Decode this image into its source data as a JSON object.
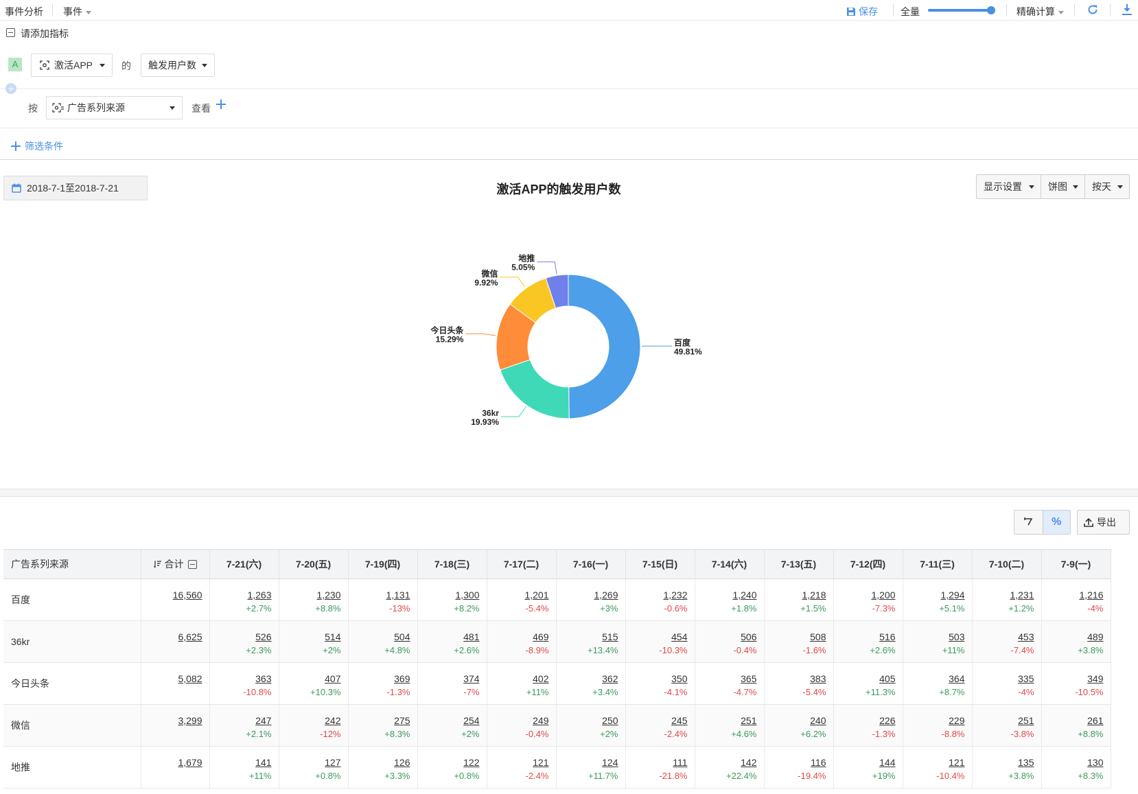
{
  "topbar": {
    "module": "事件分析",
    "type_label": "事件",
    "save_label": "保存",
    "sample_label": "全量",
    "sample_fraction": 0.96,
    "calc_label": "精确计算"
  },
  "metrics": {
    "section_title": "请添加指标",
    "badge": "A",
    "event": "激活APP",
    "of": "的",
    "measure": "触发用户数",
    "group_prefix": "按",
    "group_by": "广告系列来源",
    "view_label": "查看",
    "filter_label": "筛选条件"
  },
  "chart_panel": {
    "date_range": "2018-7-1至2018-7-21",
    "display_settings": "显示设置",
    "chart_type": "饼图",
    "granularity": "按天"
  },
  "chart_data": {
    "type": "pie",
    "title": "激活APP的触发用户数",
    "donut": true,
    "slices": [
      {
        "name": "百度",
        "percent": "49.81%",
        "value": 49.81,
        "color": "#4c9fe8"
      },
      {
        "name": "36kr",
        "percent": "19.93%",
        "value": 19.93,
        "color": "#40d9b8"
      },
      {
        "name": "今日头条",
        "percent": "15.29%",
        "value": 15.29,
        "color": "#ff8c38"
      },
      {
        "name": "微信",
        "percent": "9.92%",
        "value": 9.92,
        "color": "#f9c623"
      },
      {
        "name": "地推",
        "percent": "5.05%",
        "value": 5.05,
        "color": "#6f80eb"
      }
    ]
  },
  "table_tools": {
    "percent_label": "%",
    "export_label": "导出"
  },
  "table": {
    "group_header": "广告系列来源",
    "total_header": "合计",
    "dates": [
      "7-21(六)",
      "7-20(五)",
      "7-19(四)",
      "7-18(三)",
      "7-17(二)",
      "7-16(一)",
      "7-15(日)",
      "7-14(六)",
      "7-13(五)",
      "7-12(四)",
      "7-11(三)",
      "7-10(二)",
      "7-9(一)"
    ],
    "rows": [
      {
        "name": "百度",
        "total": "16,560",
        "values": [
          "1,263",
          "1,230",
          "1,131",
          "1,300",
          "1,201",
          "1,269",
          "1,232",
          "1,240",
          "1,218",
          "1,200",
          "1,294",
          "1,231",
          "1,216"
        ],
        "changes": [
          "+2.7%",
          "+8.8%",
          "-13%",
          "+8.2%",
          "-5.4%",
          "+3%",
          "-0.6%",
          "+1.8%",
          "+1.5%",
          "-7.3%",
          "+5.1%",
          "+1.2%",
          "-4%"
        ]
      },
      {
        "name": "36kr",
        "total": "6,625",
        "values": [
          "526",
          "514",
          "504",
          "481",
          "469",
          "515",
          "454",
          "506",
          "508",
          "516",
          "503",
          "453",
          "489"
        ],
        "changes": [
          "+2.3%",
          "+2%",
          "+4.8%",
          "+2.6%",
          "-8.9%",
          "+13.4%",
          "-10.3%",
          "-0.4%",
          "-1.6%",
          "+2.6%",
          "+11%",
          "-7.4%",
          "+3.8%"
        ]
      },
      {
        "name": "今日头条",
        "total": "5,082",
        "values": [
          "363",
          "407",
          "369",
          "374",
          "402",
          "362",
          "350",
          "365",
          "383",
          "405",
          "364",
          "335",
          "349"
        ],
        "changes": [
          "-10.8%",
          "+10.3%",
          "-1.3%",
          "-7%",
          "+11%",
          "+3.4%",
          "-4.1%",
          "-4.7%",
          "-5.4%",
          "+11.3%",
          "+8.7%",
          "-4%",
          "-10.5%"
        ]
      },
      {
        "name": "微信",
        "total": "3,299",
        "values": [
          "247",
          "242",
          "275",
          "254",
          "249",
          "250",
          "245",
          "251",
          "240",
          "226",
          "229",
          "251",
          "261"
        ],
        "changes": [
          "+2.1%",
          "-12%",
          "+8.3%",
          "+2%",
          "-0.4%",
          "+2%",
          "-2.4%",
          "+4.6%",
          "+6.2%",
          "-1.3%",
          "-8.8%",
          "-3.8%",
          "+8.8%"
        ]
      },
      {
        "name": "地推",
        "total": "1,679",
        "values": [
          "141",
          "127",
          "126",
          "122",
          "121",
          "124",
          "111",
          "142",
          "116",
          "144",
          "121",
          "135",
          "130"
        ],
        "changes": [
          "+11%",
          "+0.8%",
          "+3.3%",
          "+0.8%",
          "-2.4%",
          "+11.7%",
          "-21.8%",
          "+22.4%",
          "-19.4%",
          "+19%",
          "-10.4%",
          "+3.8%",
          "+8.3%"
        ]
      }
    ]
  }
}
